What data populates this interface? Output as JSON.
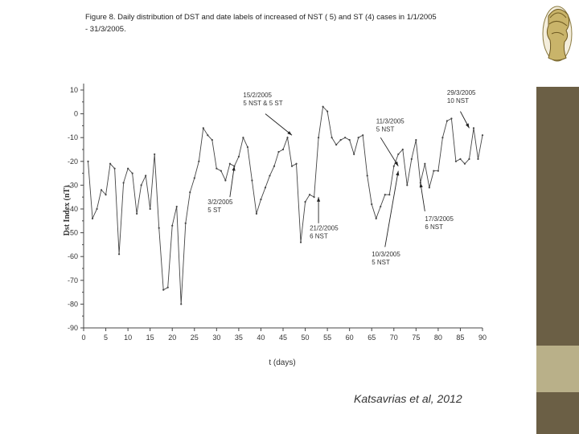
{
  "slide": {
    "caption": "Figure 8. Daily distribution of DST and date labels of increased of NST ( 5) and ST (4) cases in 1/1/2005 - 31/3/2005.",
    "credit": "Katsavrias et al, 2012"
  },
  "colors": {
    "band": "#6b5f45",
    "band_light": "#b9b089",
    "line": "#444444"
  },
  "logo_icon": "classical-bust-logo",
  "chart_data": {
    "type": "line",
    "title": "",
    "xlabel": "t (days)",
    "ylabel": "Dst Index (nT)",
    "xlim": [
      0,
      90
    ],
    "ylim": [
      -90,
      10
    ],
    "grid": false,
    "xticks": [
      0,
      5,
      10,
      15,
      20,
      25,
      30,
      35,
      40,
      45,
      50,
      55,
      60,
      65,
      70,
      75,
      80,
      85,
      90
    ],
    "yticks": [
      10,
      0,
      -10,
      -20,
      -30,
      -40,
      -50,
      -60,
      -70,
      -80,
      -90
    ],
    "series": [
      {
        "x": [
          1,
          2,
          3,
          4,
          5,
          6,
          7,
          8,
          9,
          10,
          11,
          12,
          13,
          14,
          15,
          16,
          17,
          18,
          19,
          20,
          21,
          22,
          23,
          24,
          25,
          26,
          27,
          28,
          29,
          30,
          31,
          32,
          33,
          34,
          35,
          36,
          37,
          38,
          39,
          40,
          41,
          42,
          43,
          44,
          45,
          46,
          47,
          48,
          49,
          50,
          51,
          52,
          53,
          54,
          55,
          56,
          57,
          58,
          59,
          60,
          61,
          62,
          63,
          64,
          65,
          66,
          67,
          68,
          69,
          70,
          71,
          72,
          73,
          74,
          75,
          76,
          77,
          78,
          79,
          80,
          81,
          82,
          83,
          84,
          85,
          86,
          87,
          88,
          89,
          90
        ],
        "y": [
          -20,
          -44,
          -40,
          -32,
          -34,
          -21,
          -23,
          -59,
          -29,
          -23,
          -25,
          -42,
          -30,
          -26,
          -40,
          -17,
          -48,
          -74,
          -73,
          -47,
          -39,
          -80,
          -46,
          -33,
          -27,
          -20,
          -6,
          -9,
          -11,
          -23,
          -24,
          -28,
          -21,
          -22,
          -18,
          -10,
          -14,
          -28,
          -42,
          -36,
          -31,
          -26,
          -22,
          -16,
          -15,
          -10,
          -22,
          -21,
          -54,
          -37,
          -34,
          -35,
          -10,
          3,
          1,
          -10,
          -13,
          -11,
          -10,
          -11,
          -17,
          -10,
          -9,
          -26,
          -38,
          -44,
          -39,
          -34,
          -34,
          -22,
          -17,
          -15,
          -30,
          -19,
          -11,
          -29,
          -21,
          -31,
          -24,
          -24,
          -10,
          -3,
          -2,
          -20,
          -19,
          -21,
          -19,
          -6,
          -19,
          -9
        ]
      }
    ],
    "annotations": [
      {
        "text": "15/2/2005",
        "text2": "5 NST & 5 ST"
      },
      {
        "text": "29/3/2005",
        "text2": "10 NST"
      },
      {
        "text": "11/3/2005",
        "text2": "5 NST"
      },
      {
        "text": "3/2/2005",
        "text2": "5 ST"
      },
      {
        "text": "21/2/2005",
        "text2": "6 NST"
      },
      {
        "text": "17/3/2005",
        "text2": "6 NST"
      },
      {
        "text": "10/3/2005",
        "text2": "5 NST"
      }
    ]
  }
}
